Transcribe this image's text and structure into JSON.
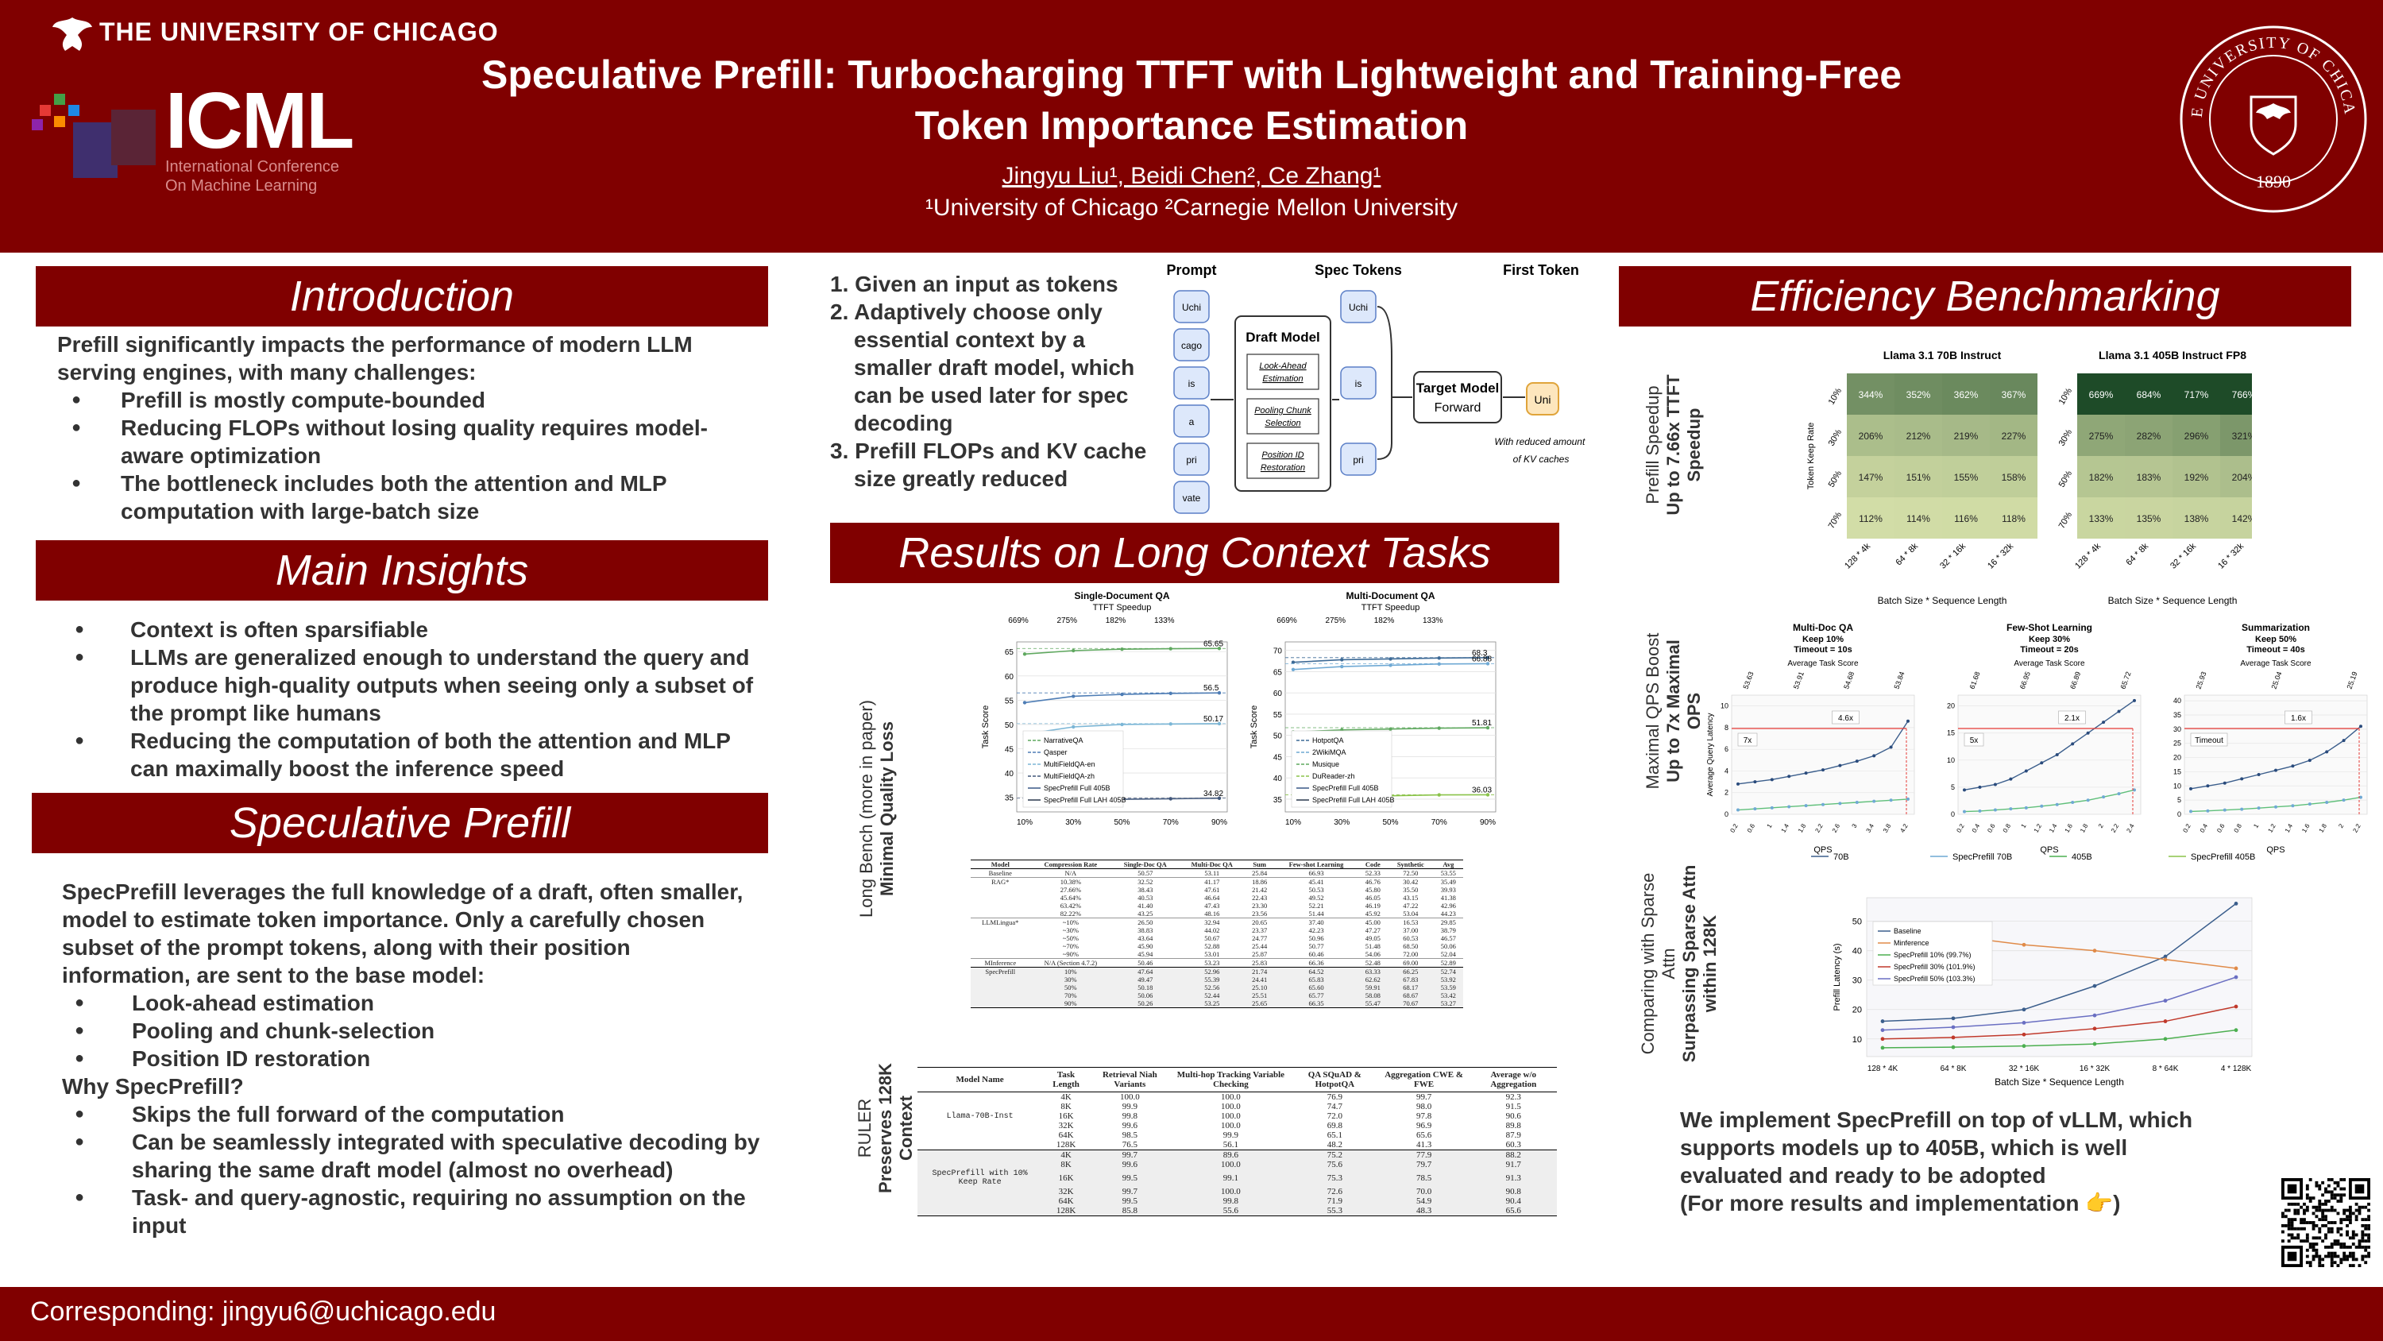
{
  "header": {
    "university": "THE UNIVERSITY OF CHICAGO",
    "conference_logo": "ICML",
    "conference_sub": [
      "International Conference",
      "On Machine Learning"
    ],
    "title_line1": "Speculative Prefill: Turbocharging TTFT with Lightweight and Training-Free",
    "title_line2": "Token Importance Estimation",
    "authors": "Jingyu Liu¹, Beidi Chen², Ce Zhang¹",
    "affiliations": "¹University of Chicago ²Carnegie Mellon University",
    "seal_text": "THE UNIVERSITY OF CHICAGO",
    "seal_year": "1890"
  },
  "intro": {
    "heading": "Introduction",
    "lead": "Prefill significantly impacts the performance of modern LLM serving engines, with many challenges:",
    "bullets": [
      "Prefill is mostly compute-bounded",
      "Reducing FLOPs without losing quality requires model-aware optimization",
      "The bottleneck includes both the attention and MLP computation with large-batch size"
    ]
  },
  "insights": {
    "heading": "Main Insights",
    "bullets": [
      "Context is often sparsifiable",
      "LLMs are generalized enough to understand the query and produce high-quality outputs when seeing only a subset of the prompt like humans",
      "Reducing the computation of both the attention and MLP can maximally boost the inference speed"
    ]
  },
  "specprefill": {
    "heading": "Speculative Prefill",
    "lead": "SpecPrefill leverages the full knowledge of a draft, often smaller, model to estimate token importance. Only a carefully chosen subset of the prompt tokens, along with their position information, are sent to the base model:",
    "bullets": [
      "Look-ahead estimation",
      "Pooling and chunk-selection",
      "Position ID restoration"
    ],
    "why": "Why SpecPrefill?",
    "why_bullets": [
      "Skips the full forward of the computation",
      "Can be seamlessly integrated with speculative decoding by sharing the same draft model (almost no overhead)",
      "Task- and query-agnostic, requiring no assumption on the input"
    ]
  },
  "steps": [
    "1. Given an input as tokens",
    "2. Adaptively choose only essential context by a smaller draft model, which can be used later for spec decoding",
    "3. Prefill FLOPs and KV cache size greatly reduced"
  ],
  "diagram": {
    "col_prompt": "Prompt",
    "col_spec": "Spec Tokens",
    "col_first": "First Token",
    "prompt_tokens": [
      "Uchi",
      "cago",
      "is",
      "a",
      "pri",
      "vate"
    ],
    "spec_tokens": [
      "Uchi",
      "is",
      "pri"
    ],
    "draft_title": "Draft Model",
    "draft_steps": [
      "Look-Ahead Estimation",
      "Pooling Chunk Selection",
      "Position ID Restoration"
    ],
    "target_title": "Target Model",
    "target_sub": "Forward",
    "first_token": "Uni",
    "note": "With reduced amount of KV caches"
  },
  "results": {
    "heading": "Results on Long Context Tasks",
    "longbench_label": [
      "Long Bench (more in paper)",
      "Minimal Quality Loss"
    ],
    "ruler_label": [
      "RULER",
      "Preserves 128K Context"
    ]
  },
  "efficiency": {
    "heading": "Efficiency Benchmarking",
    "label_speedup": [
      "Prefill Speedup",
      "Up to 7.66x TTFT Speedup"
    ],
    "label_qps": [
      "Maximal QPS Boost",
      "Up to 7x Maximal QPS"
    ],
    "label_sparse": [
      "Comparing with Sparse Attn",
      "Surpassing Sparse Attn",
      "within 128K"
    ],
    "closing": [
      "We implement SpecPrefill on top of vLLM, which",
      "supports models up to 405B, which is well",
      "evaluated and ready to be adopted",
      "(For more results and implementation 👉)"
    ]
  },
  "footer": "Corresponding: jingyu6@uchicago.edu",
  "chart_data": [
    {
      "type": "line",
      "title": "Single-Document QA",
      "subtitle": "TTFT Speedup",
      "top_ticks": [
        "669%",
        "275%",
        "182%",
        "133%"
      ],
      "x": [
        "10%",
        "30%",
        "50%",
        "70%",
        "90%"
      ],
      "ylabel": "Task Score",
      "yticks": [
        35,
        40,
        45,
        50,
        55,
        60,
        65
      ],
      "ylim": [
        32,
        67
      ],
      "annotations": [
        "65.65",
        "56.5",
        "50.17",
        "34.82"
      ],
      "legend": [
        "NarrativeQA",
        "Qasper",
        "MultiFieldQA-en",
        "MultiFieldQA-zh",
        "SpecPrefill Full 405B",
        "SpecPrefill Full LAH 405B"
      ]
    },
    {
      "type": "line",
      "title": "Multi-Document QA",
      "subtitle": "TTFT Speedup",
      "top_ticks": [
        "669%",
        "275%",
        "182%",
        "133%"
      ],
      "x": [
        "10%",
        "30%",
        "50%",
        "70%",
        "90%"
      ],
      "ylabel": "Task Score",
      "yticks": [
        35,
        40,
        45,
        50,
        55,
        60,
        65,
        70
      ],
      "ylim": [
        32,
        72
      ],
      "annotations": [
        "68.3",
        "66.88",
        "51.81",
        "36.03"
      ],
      "legend": [
        "HotpotQA",
        "2WikiMQA",
        "Musique",
        "DuReader-zh",
        "SpecPrefill Full 405B",
        "SpecPrefill Full LAH 405B"
      ]
    },
    {
      "type": "table",
      "title": "LongBench table",
      "columns": [
        "Model",
        "Compression Rate",
        "Single-Doc QA",
        "Multi-Doc QA",
        "Sum",
        "Few-shot Learning",
        "Code",
        "Synthetic",
        "Avg"
      ],
      "rows": [
        [
          "Baseline",
          "N/A",
          "50.57",
          "53.11",
          "25.84",
          "66.93",
          "52.33",
          "72.50",
          "53.55"
        ],
        [
          "RAG*",
          "10.38%",
          "32.52",
          "41.17",
          "18.86",
          "45.41",
          "46.76",
          "30.42",
          "35.49"
        ],
        [
          "",
          "27.66%",
          "38.43",
          "47.61",
          "21.42",
          "50.53",
          "45.80",
          "35.50",
          "39.93"
        ],
        [
          "",
          "45.64%",
          "40.53",
          "46.64",
          "22.43",
          "49.52",
          "46.05",
          "43.15",
          "41.38"
        ],
        [
          "",
          "63.42%",
          "41.40",
          "47.43",
          "23.30",
          "52.21",
          "46.19",
          "47.22",
          "42.96"
        ],
        [
          "",
          "82.22%",
          "43.25",
          "48.16",
          "23.56",
          "51.44",
          "45.92",
          "53.04",
          "44.23"
        ],
        [
          "LLMLingua*",
          "~10%",
          "26.50",
          "32.94",
          "20.65",
          "37.40",
          "45.00",
          "16.53",
          "29.85"
        ],
        [
          "",
          "~30%",
          "38.83",
          "44.02",
          "23.37",
          "42.23",
          "47.27",
          "37.00",
          "38.79"
        ],
        [
          "",
          "~50%",
          "43.64",
          "50.67",
          "24.77",
          "50.96",
          "49.05",
          "60.53",
          "46.57"
        ],
        [
          "",
          "~70%",
          "45.90",
          "52.88",
          "25.44",
          "50.77",
          "51.48",
          "68.50",
          "50.06"
        ],
        [
          "",
          "~90%",
          "45.94",
          "53.01",
          "25.87",
          "60.46",
          "54.06",
          "72.00",
          "52.04"
        ],
        [
          "MInference",
          "N/A (Section 4.7.2)",
          "50.46",
          "53.23",
          "25.83",
          "66.36",
          "52.48",
          "69.00",
          "52.89"
        ],
        [
          "SpecPrefill",
          "10%",
          "47.64",
          "52.96",
          "21.74",
          "64.52",
          "63.33",
          "66.25",
          "52.74"
        ],
        [
          "",
          "30%",
          "49.47",
          "55.39",
          "24.41",
          "65.83",
          "62.62",
          "67.83",
          "53.92"
        ],
        [
          "",
          "50%",
          "50.18",
          "52.56",
          "25.10",
          "65.60",
          "59.91",
          "68.17",
          "53.59"
        ],
        [
          "",
          "70%",
          "50.06",
          "52.44",
          "25.51",
          "65.77",
          "58.08",
          "68.67",
          "53.42"
        ],
        [
          "",
          "90%",
          "50.26",
          "53.25",
          "25.65",
          "66.35",
          "55.47",
          "70.67",
          "53.27"
        ]
      ]
    },
    {
      "type": "table",
      "title": "RULER table",
      "columns": [
        "Model Name",
        "Task Length",
        "Retrieval Niah Variants",
        "Multi-hop Tracking Variable Checking",
        "QA SQuAD & HotpotQA",
        "Aggregation CWE & FWE",
        "Average w/o Aggregation"
      ],
      "groups": [
        {
          "model": "Llama-70B-Inst",
          "rows": [
            [
              "4K",
              "100.0",
              "100.0",
              "76.9",
              "99.7",
              "92.3"
            ],
            [
              "8K",
              "99.9",
              "100.0",
              "74.7",
              "98.0",
              "91.5"
            ],
            [
              "16K",
              "99.8",
              "100.0",
              "72.0",
              "97.8",
              "90.6"
            ],
            [
              "32K",
              "99.6",
              "100.0",
              "69.8",
              "96.9",
              "89.8"
            ],
            [
              "64K",
              "98.5",
              "99.9",
              "65.1",
              "65.6",
              "87.9"
            ],
            [
              "128K",
              "76.5",
              "56.1",
              "48.2",
              "41.3",
              "60.3"
            ]
          ]
        },
        {
          "model": "SpecPrefill with 10% Keep Rate",
          "rows": [
            [
              "4K",
              "99.7",
              "89.6",
              "75.2",
              "77.9",
              "88.2"
            ],
            [
              "8K",
              "99.6",
              "100.0",
              "75.6",
              "79.7",
              "91.7"
            ],
            [
              "16K",
              "99.5",
              "99.1",
              "75.3",
              "78.5",
              "91.3"
            ],
            [
              "32K",
              "99.7",
              "100.0",
              "72.6",
              "70.0",
              "90.8"
            ],
            [
              "64K",
              "99.5",
              "99.8",
              "71.9",
              "54.9",
              "90.4"
            ],
            [
              "128K",
              "85.8",
              "55.6",
              "55.3",
              "48.3",
              "65.6"
            ]
          ]
        }
      ]
    },
    {
      "type": "heatmap",
      "title": "Llama 3.1 70B Instruct",
      "ylabel": "Token Keep Rate",
      "xlabel": "Batch Size * Sequence Length",
      "rows": [
        "10%",
        "30%",
        "50%",
        "70%"
      ],
      "cols": [
        "128 * 4k",
        "64 * 8k",
        "32 * 16k",
        "16 * 32k"
      ],
      "values": [
        [
          "344%",
          "352%",
          "362%",
          "367%"
        ],
        [
          "206%",
          "212%",
          "219%",
          "227%"
        ],
        [
          "147%",
          "151%",
          "155%",
          "158%"
        ],
        [
          "112%",
          "114%",
          "116%",
          "118%"
        ]
      ]
    },
    {
      "type": "heatmap",
      "title": "Llama 3.1 405B Instruct FP8",
      "xlabel": "Batch Size * Sequence Length",
      "rows": [
        "10%",
        "30%",
        "50%",
        "70%"
      ],
      "cols": [
        "128 * 4k",
        "64 * 8k",
        "32 * 16k",
        "16 * 32k"
      ],
      "values": [
        [
          "669%",
          "684%",
          "717%",
          "766%"
        ],
        [
          "275%",
          "282%",
          "296%",
          "321%"
        ],
        [
          "182%",
          "183%",
          "192%",
          "204%"
        ],
        [
          "133%",
          "135%",
          "138%",
          "142%"
        ]
      ]
    },
    {
      "type": "line",
      "title": "Multi-Doc QA",
      "subtitle": [
        "Keep 10%",
        "Timeout = 10s"
      ],
      "caption": "Average Task Score",
      "top_labels": [
        "53.63",
        "53.91",
        "54.68",
        "53.84"
      ],
      "xlabel": "QPS",
      "ylabel": "Average Query Latency",
      "yticks": [
        0,
        2,
        4,
        6,
        8,
        10
      ],
      "ylim": [
        0,
        11
      ],
      "x": [
        0.2,
        0.6,
        1.0,
        1.4,
        1.8,
        2.2,
        2.6,
        3.0,
        3.4,
        3.8,
        4.2
      ],
      "annotations": [
        "7x",
        "4.6x"
      ]
    },
    {
      "type": "line",
      "title": "Few-Shot Learning",
      "subtitle": [
        "Keep 30%",
        "Timeout = 20s"
      ],
      "caption": "Average Task Score",
      "top_labels": [
        "61.68",
        "66.95",
        "66.89",
        "65.72"
      ],
      "xlabel": "QPS",
      "yticks": [
        0,
        5,
        10,
        15,
        20
      ],
      "ylim": [
        0,
        22
      ],
      "x": [
        0.2,
        0.4,
        0.6,
        0.8,
        1.0,
        1.2,
        1.4,
        1.6,
        1.8,
        2.0,
        2.2,
        2.4
      ],
      "annotations": [
        "5x",
        "2.1x"
      ]
    },
    {
      "type": "line",
      "title": "Summarization",
      "subtitle": [
        "Keep 50%",
        "Timeout = 40s"
      ],
      "caption": "Average Task Score",
      "top_labels": [
        "25.93",
        "25.04",
        "25.19"
      ],
      "xlabel": "QPS",
      "yticks": [
        0,
        5,
        10,
        15,
        20,
        25,
        30,
        35,
        40
      ],
      "ylim": [
        0,
        42
      ],
      "x": [
        0.2,
        0.4,
        0.6,
        0.8,
        1.0,
        1.2,
        1.4,
        1.6,
        1.8,
        2.0,
        2.2
      ],
      "annotations": [
        "Timeout",
        "1.6x"
      ],
      "legend": [
        "70B",
        "SpecPrefill 70B",
        "405B",
        "SpecPrefill 405B"
      ]
    },
    {
      "type": "line",
      "xlabel": "Batch Size * Sequence Length",
      "ylabel": "Prefill Latency (s)",
      "categories": [
        "128 * 4K",
        "64 * 8K",
        "32 * 16K",
        "16 * 32K",
        "8 * 64K",
        "4 * 128K"
      ],
      "yticks": [
        10,
        20,
        30,
        40,
        50
      ],
      "ylim": [
        4,
        58
      ],
      "series": [
        {
          "name": "Baseline",
          "values": [
            16,
            17,
            20,
            28,
            38,
            56
          ]
        },
        {
          "name": "Minference",
          "values": [
            47,
            45,
            42,
            40,
            37,
            34
          ]
        },
        {
          "name": "SpecPrefill 10% (99.7%)",
          "values": [
            7,
            7.2,
            7.6,
            8.3,
            10,
            13
          ]
        },
        {
          "name": "SpecPrefill 30% (101.9%)",
          "values": [
            10,
            10.5,
            11.5,
            13.5,
            16,
            21
          ]
        },
        {
          "name": "SpecPrefill 50% (103.3%)",
          "values": [
            13,
            14,
            15.5,
            18,
            23,
            31
          ]
        }
      ]
    }
  ]
}
